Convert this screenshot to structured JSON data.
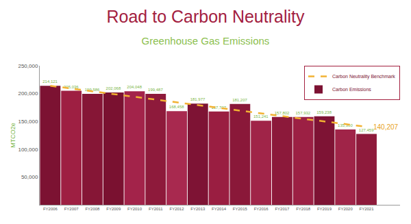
{
  "chart_data": {
    "type": "bar",
    "title": "Road to Carbon Neutrality",
    "subtitle": "Greenhouse Gas Emissions",
    "y_label": "MTCO2e",
    "categories": [
      "FY2006",
      "FY2007",
      "FY2008",
      "FY2009",
      "FY2010",
      "FY2011",
      "FY2012",
      "FY2013",
      "FY2014",
      "FY2015",
      "FY2016",
      "FY2017",
      "FY2018",
      "FY2019",
      "FY2020",
      "FY2021"
    ],
    "series": [
      {
        "name": "Carbon Neutrality Benchmark",
        "type": "line",
        "color": "#f2b233",
        "line_style": "dashed",
        "values": [
          214000,
          209000,
          204000,
          199000,
          194500,
          189500,
          184500,
          179500,
          174500,
          169500,
          164500,
          159500,
          154500,
          150000,
          145000,
          140207
        ]
      },
      {
        "name": "Carbon Emissions",
        "type": "bar",
        "data_labels": true,
        "colors": [
          "#7c1232",
          "#9e1f42",
          "#861636",
          "#7a1130",
          "#a3234a",
          "#8e1a3b",
          "#a8294f",
          "#7e1334",
          "#9a1e41",
          "#8a1839",
          "#a02448",
          "#8c193a",
          "#9c2044",
          "#7e1334",
          "#a02448",
          "#8e1a3b"
        ],
        "values": [
          214121,
          205036,
          199586,
          202068,
          204048,
          199487,
          168458,
          181977,
          167707,
          181207,
          151241,
          157802,
          157932,
          159238,
          135360,
          127459
        ],
        "value_labels": [
          "214,121",
          "205,036",
          "199,586",
          "202,068",
          "204,048",
          "199,487",
          "168,458",
          "181,977",
          "167,707",
          "181,207",
          "151,241",
          "157,802",
          "157,932",
          "159,238",
          "135,360",
          "127,459"
        ]
      }
    ],
    "annotations": [
      {
        "text": "140,207",
        "x": "FY2021",
        "y": 140207,
        "color": "#e8a21a"
      }
    ],
    "ylim": [
      0,
      250000
    ],
    "yticks": [
      {
        "value": 50000,
        "label": "50,000"
      },
      {
        "value": 100000,
        "label": "100,000"
      },
      {
        "value": 150000,
        "label": "150,000"
      },
      {
        "value": 200000,
        "label": "200,000"
      },
      {
        "value": 250000,
        "label": "250,000"
      }
    ],
    "grid": false,
    "legend": "upper right"
  }
}
